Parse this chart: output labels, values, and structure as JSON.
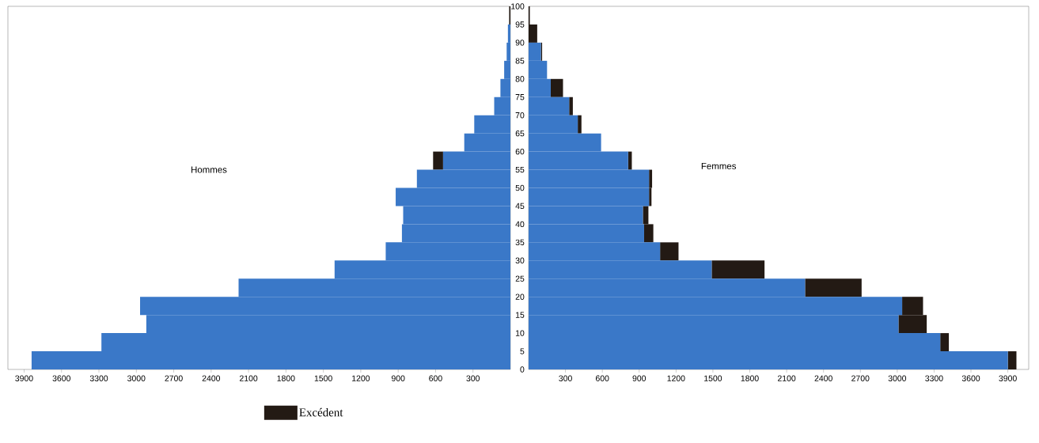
{
  "chart_data": [
    {
      "type": "bar",
      "orientation": "horizontal",
      "stacked": true,
      "annotations": [
        "Hommes"
      ],
      "legend": "bottom",
      "tick_labels": "x",
      "x": [
        2.5,
        7.5,
        12.5,
        17.5,
        22.5,
        27.5,
        32.5,
        37.5,
        42.5,
        47.5,
        52.5,
        57.5,
        62.5,
        67.5,
        72.5,
        77.5,
        82.5,
        87.5,
        92.5,
        97.5
      ],
      "series": [
        {
          "color": "#3a78c8",
          "values": [
            3840,
            3280,
            2920,
            2970,
            2180,
            1410,
            1000,
            870,
            860,
            920,
            750,
            540,
            370,
            290,
            130,
            80,
            50,
            30,
            20,
            0
          ]
        },
        {
          "name": "Excédent",
          "color": "#231a14",
          "values": [
            0,
            0,
            0,
            0,
            0,
            0,
            0,
            0,
            0,
            0,
            0,
            80,
            0,
            0,
            0,
            0,
            0,
            0,
            0,
            10
          ]
        }
      ],
      "xlim": [
        4030,
        0
      ],
      "xticks": [
        3900,
        3600,
        3300,
        3000,
        2700,
        2400,
        2100,
        1800,
        1500,
        1200,
        900,
        600,
        300
      ],
      "ylim": [
        0,
        100
      ],
      "yticks": [
        0,
        5,
        10,
        15,
        20,
        25,
        30,
        35,
        40,
        45,
        50,
        55,
        60,
        65,
        70,
        75,
        80,
        85,
        90,
        95,
        100
      ]
    },
    {
      "type": "bar",
      "orientation": "horizontal",
      "stacked": true,
      "annotations": [
        "Femmes"
      ],
      "x": [
        2.5,
        7.5,
        12.5,
        17.5,
        22.5,
        27.5,
        32.5,
        37.5,
        42.5,
        47.5,
        52.5,
        57.5,
        62.5,
        67.5,
        72.5,
        77.5,
        82.5,
        87.5,
        92.5,
        97.5
      ],
      "series": [
        {
          "color": "#3a78c8",
          "values": [
            3900,
            3350,
            3010,
            3040,
            2250,
            1490,
            1070,
            940,
            930,
            980,
            980,
            810,
            590,
            400,
            330,
            180,
            150,
            100,
            0,
            0
          ]
        },
        {
          "color": "#231a14",
          "values": [
            70,
            70,
            230,
            170,
            460,
            430,
            150,
            75,
            45,
            20,
            25,
            30,
            0,
            30,
            30,
            100,
            0,
            10,
            70,
            10
          ]
        }
      ],
      "xlim": [
        0,
        4070
      ],
      "xticks": [
        300,
        600,
        900,
        1200,
        1500,
        1800,
        2100,
        2400,
        2700,
        3000,
        3300,
        3600,
        3900
      ],
      "ylim": [
        0,
        100
      ],
      "yticks": [
        0,
        5,
        10,
        15,
        20,
        25,
        30,
        35,
        40,
        45,
        50,
        55,
        60,
        65,
        70,
        75,
        80,
        85,
        90,
        95,
        100
      ]
    }
  ]
}
